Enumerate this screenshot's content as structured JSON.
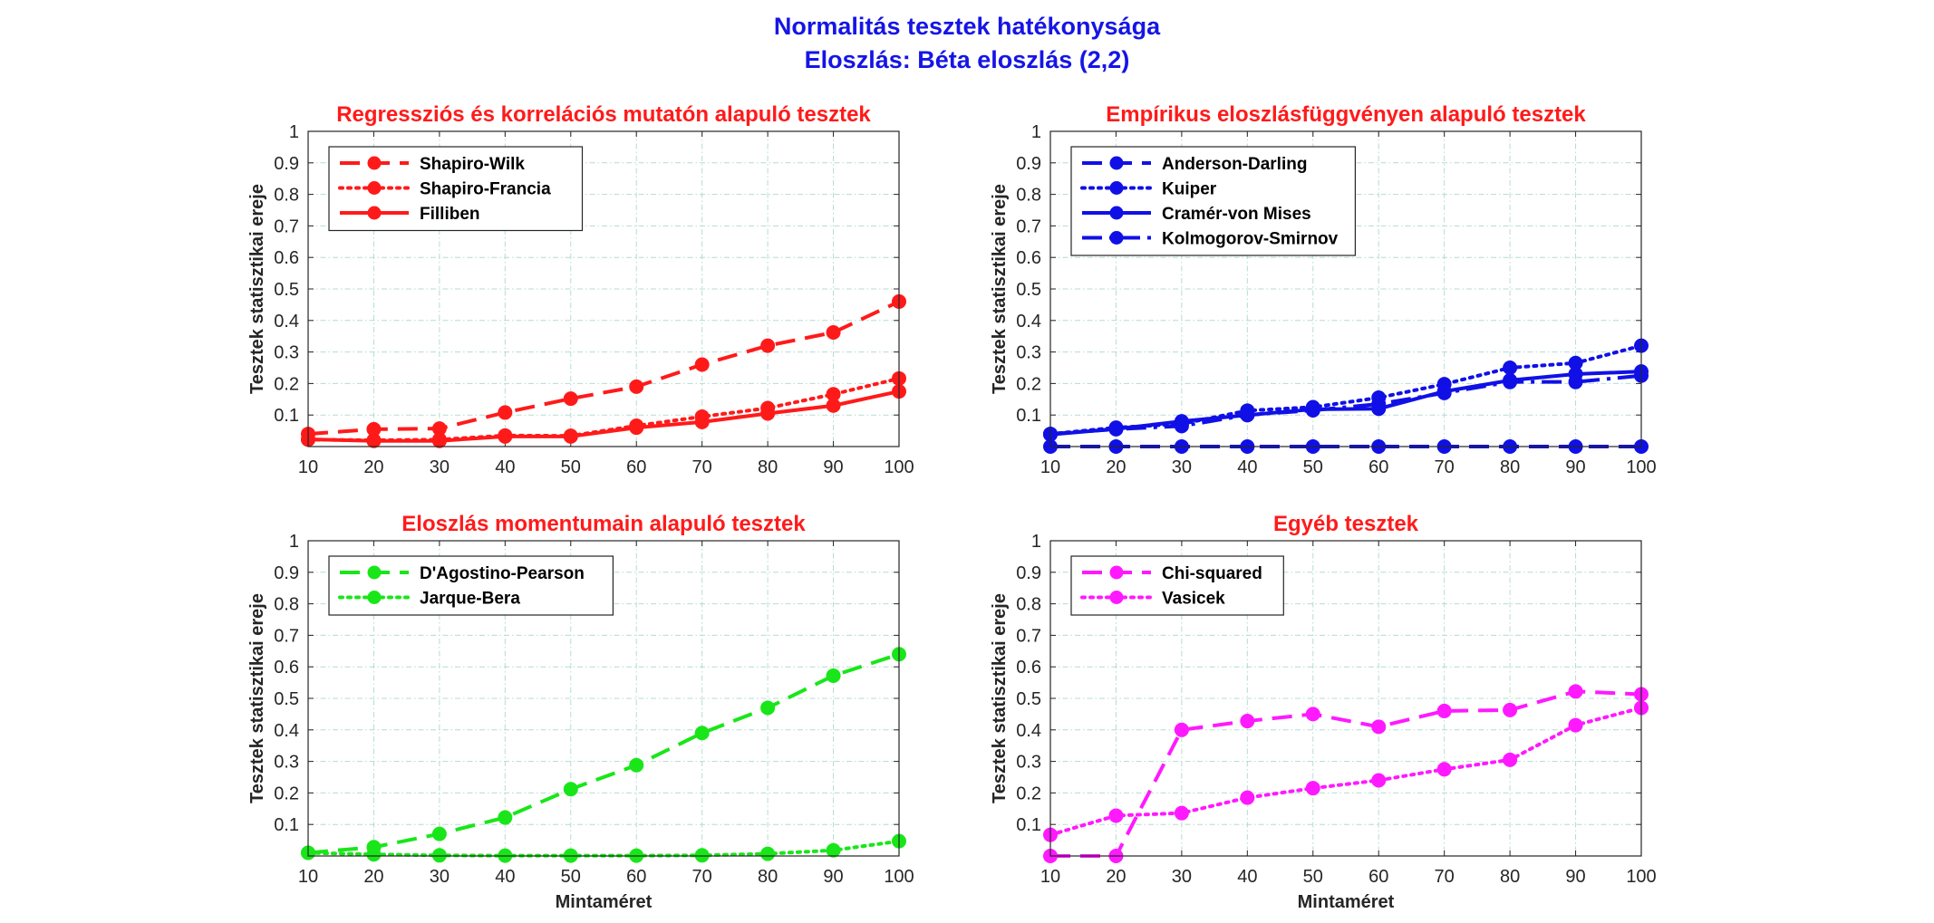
{
  "figure": {
    "title": "Normalitás tesztek hatékonysága",
    "subtitle": "Eloszlás: Béta eloszlás (2,2)"
  },
  "chart_data": [
    {
      "type": "line",
      "title": "Regressziós és korrelációs mutatón alapuló tesztek",
      "xlabel": "",
      "ylabel": "Tesztek statisztikai ereje",
      "x": [
        10,
        20,
        30,
        40,
        50,
        60,
        70,
        80,
        90,
        100
      ],
      "xlim": [
        10,
        100
      ],
      "ylim": [
        0,
        1
      ],
      "yticks": [
        0.1,
        0.2,
        0.3,
        0.4,
        0.5,
        0.6,
        0.7,
        0.8,
        0.9,
        1
      ],
      "xticks": [
        10,
        20,
        30,
        40,
        50,
        60,
        70,
        80,
        90,
        100
      ],
      "grid": true,
      "legend_position": "top-left",
      "series": [
        {
          "name": "Shapiro-Wilk",
          "style": "dashed",
          "color": "#ff1a1a",
          "values": [
            0.04,
            0.055,
            0.057,
            0.108,
            0.152,
            0.19,
            0.26,
            0.32,
            0.362,
            0.46
          ]
        },
        {
          "name": "Shapiro-Francia",
          "style": "dotted",
          "color": "#ff1a1a",
          "values": [
            0.022,
            0.02,
            0.022,
            0.035,
            0.034,
            0.066,
            0.095,
            0.122,
            0.166,
            0.216
          ]
        },
        {
          "name": "Filliben",
          "style": "solid",
          "color": "#ff1a1a",
          "values": [
            0.023,
            0.018,
            0.018,
            0.032,
            0.032,
            0.06,
            0.078,
            0.105,
            0.13,
            0.175
          ]
        }
      ]
    },
    {
      "type": "line",
      "title": "Empírikus eloszlásfüggvényen alapuló tesztek",
      "xlabel": "",
      "ylabel": "Tesztek statisztikai ereje",
      "x": [
        10,
        20,
        30,
        40,
        50,
        60,
        70,
        80,
        90,
        100
      ],
      "xlim": [
        10,
        100
      ],
      "ylim": [
        0,
        1
      ],
      "yticks": [
        0.1,
        0.2,
        0.3,
        0.4,
        0.5,
        0.6,
        0.7,
        0.8,
        0.9,
        1
      ],
      "xticks": [
        10,
        20,
        30,
        40,
        50,
        60,
        70,
        80,
        90,
        100
      ],
      "grid": true,
      "legend_position": "top-left",
      "series": [
        {
          "name": "Anderson-Darling",
          "style": "dashed",
          "color": "#1010e6",
          "values": [
            0,
            0,
            0,
            0,
            0,
            0,
            0,
            0,
            0,
            0
          ]
        },
        {
          "name": "Kuiper",
          "style": "dotted",
          "color": "#1010e6",
          "values": [
            0.04,
            0.06,
            0.072,
            0.114,
            0.125,
            0.155,
            0.198,
            0.25,
            0.265,
            0.32
          ]
        },
        {
          "name": "Cramér-von Mises",
          "style": "solid",
          "color": "#1010e6",
          "values": [
            0.038,
            0.056,
            0.08,
            0.1,
            0.118,
            0.12,
            0.175,
            0.21,
            0.23,
            0.238
          ]
        },
        {
          "name": "Kolmogorov-Smirnov",
          "style": "dashdot",
          "color": "#1010e6",
          "values": [
            0.04,
            0.055,
            0.065,
            0.1,
            0.115,
            0.135,
            0.17,
            0.205,
            0.205,
            0.225
          ]
        }
      ]
    },
    {
      "type": "line",
      "title": "Eloszlás momentumain alapuló tesztek",
      "xlabel": "Mintaméret",
      "ylabel": "Tesztek statisztikai ereje",
      "x": [
        10,
        20,
        30,
        40,
        50,
        60,
        70,
        80,
        90,
        100
      ],
      "xlim": [
        10,
        100
      ],
      "ylim": [
        0,
        1
      ],
      "yticks": [
        0.1,
        0.2,
        0.3,
        0.4,
        0.5,
        0.6,
        0.7,
        0.8,
        0.9,
        1
      ],
      "xticks": [
        10,
        20,
        30,
        40,
        50,
        60,
        70,
        80,
        90,
        100
      ],
      "grid": true,
      "legend_position": "top-left",
      "series": [
        {
          "name": "D'Agostino-Pearson",
          "style": "dashed",
          "color": "#19e619",
          "values": [
            0.01,
            0.028,
            0.07,
            0.122,
            0.212,
            0.288,
            0.39,
            0.47,
            0.572,
            0.64
          ]
        },
        {
          "name": "Jarque-Bera",
          "style": "dotted",
          "color": "#19e619",
          "values": [
            0.01,
            0.005,
            0.002,
            0.001,
            0.001,
            0.001,
            0.002,
            0.007,
            0.018,
            0.047
          ]
        }
      ]
    },
    {
      "type": "line",
      "title": "Egyéb tesztek",
      "xlabel": "Mintaméret",
      "ylabel": "Tesztek statisztikai ereje",
      "x": [
        10,
        20,
        30,
        40,
        50,
        60,
        70,
        80,
        90,
        100
      ],
      "xlim": [
        10,
        100
      ],
      "ylim": [
        0,
        1
      ],
      "yticks": [
        0.1,
        0.2,
        0.3,
        0.4,
        0.5,
        0.6,
        0.7,
        0.8,
        0.9,
        1
      ],
      "xticks": [
        10,
        20,
        30,
        40,
        50,
        60,
        70,
        80,
        90,
        100
      ],
      "grid": true,
      "legend_position": "top-left",
      "series": [
        {
          "name": "Chi-squared",
          "style": "dashed",
          "color": "#ff19ff",
          "values": [
            0,
            0,
            0.4,
            0.428,
            0.45,
            0.41,
            0.46,
            0.463,
            0.522,
            0.513
          ]
        },
        {
          "name": "Vasicek",
          "style": "dotted",
          "color": "#ff19ff",
          "values": [
            0.067,
            0.128,
            0.136,
            0.185,
            0.215,
            0.24,
            0.275,
            0.305,
            0.415,
            0.47
          ]
        }
      ]
    }
  ]
}
